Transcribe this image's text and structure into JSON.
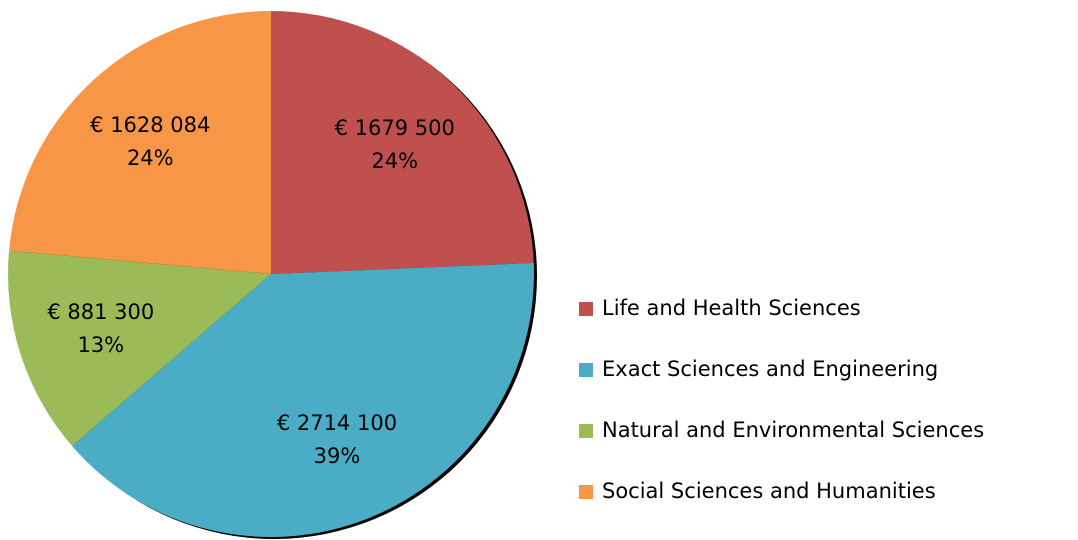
{
  "chart_data": {
    "type": "pie",
    "categories": [
      "Life and Health Sciences",
      "Exact Sciences and Engineering",
      "Natural and Environmental Sciences",
      "Social Sciences and Humanities"
    ],
    "values": [
      1679500,
      2714100,
      881300,
      1628084
    ],
    "value_labels": [
      "€ 1679 500",
      "€ 2714 100",
      "€ 881 300",
      "€ 1628 084"
    ],
    "percent_labels": [
      "24%",
      "39%",
      "13%",
      "24%"
    ],
    "colors": [
      "#c0504d",
      "#4bacc6",
      "#9bbb59",
      "#f79646"
    ],
    "legend": "right"
  }
}
